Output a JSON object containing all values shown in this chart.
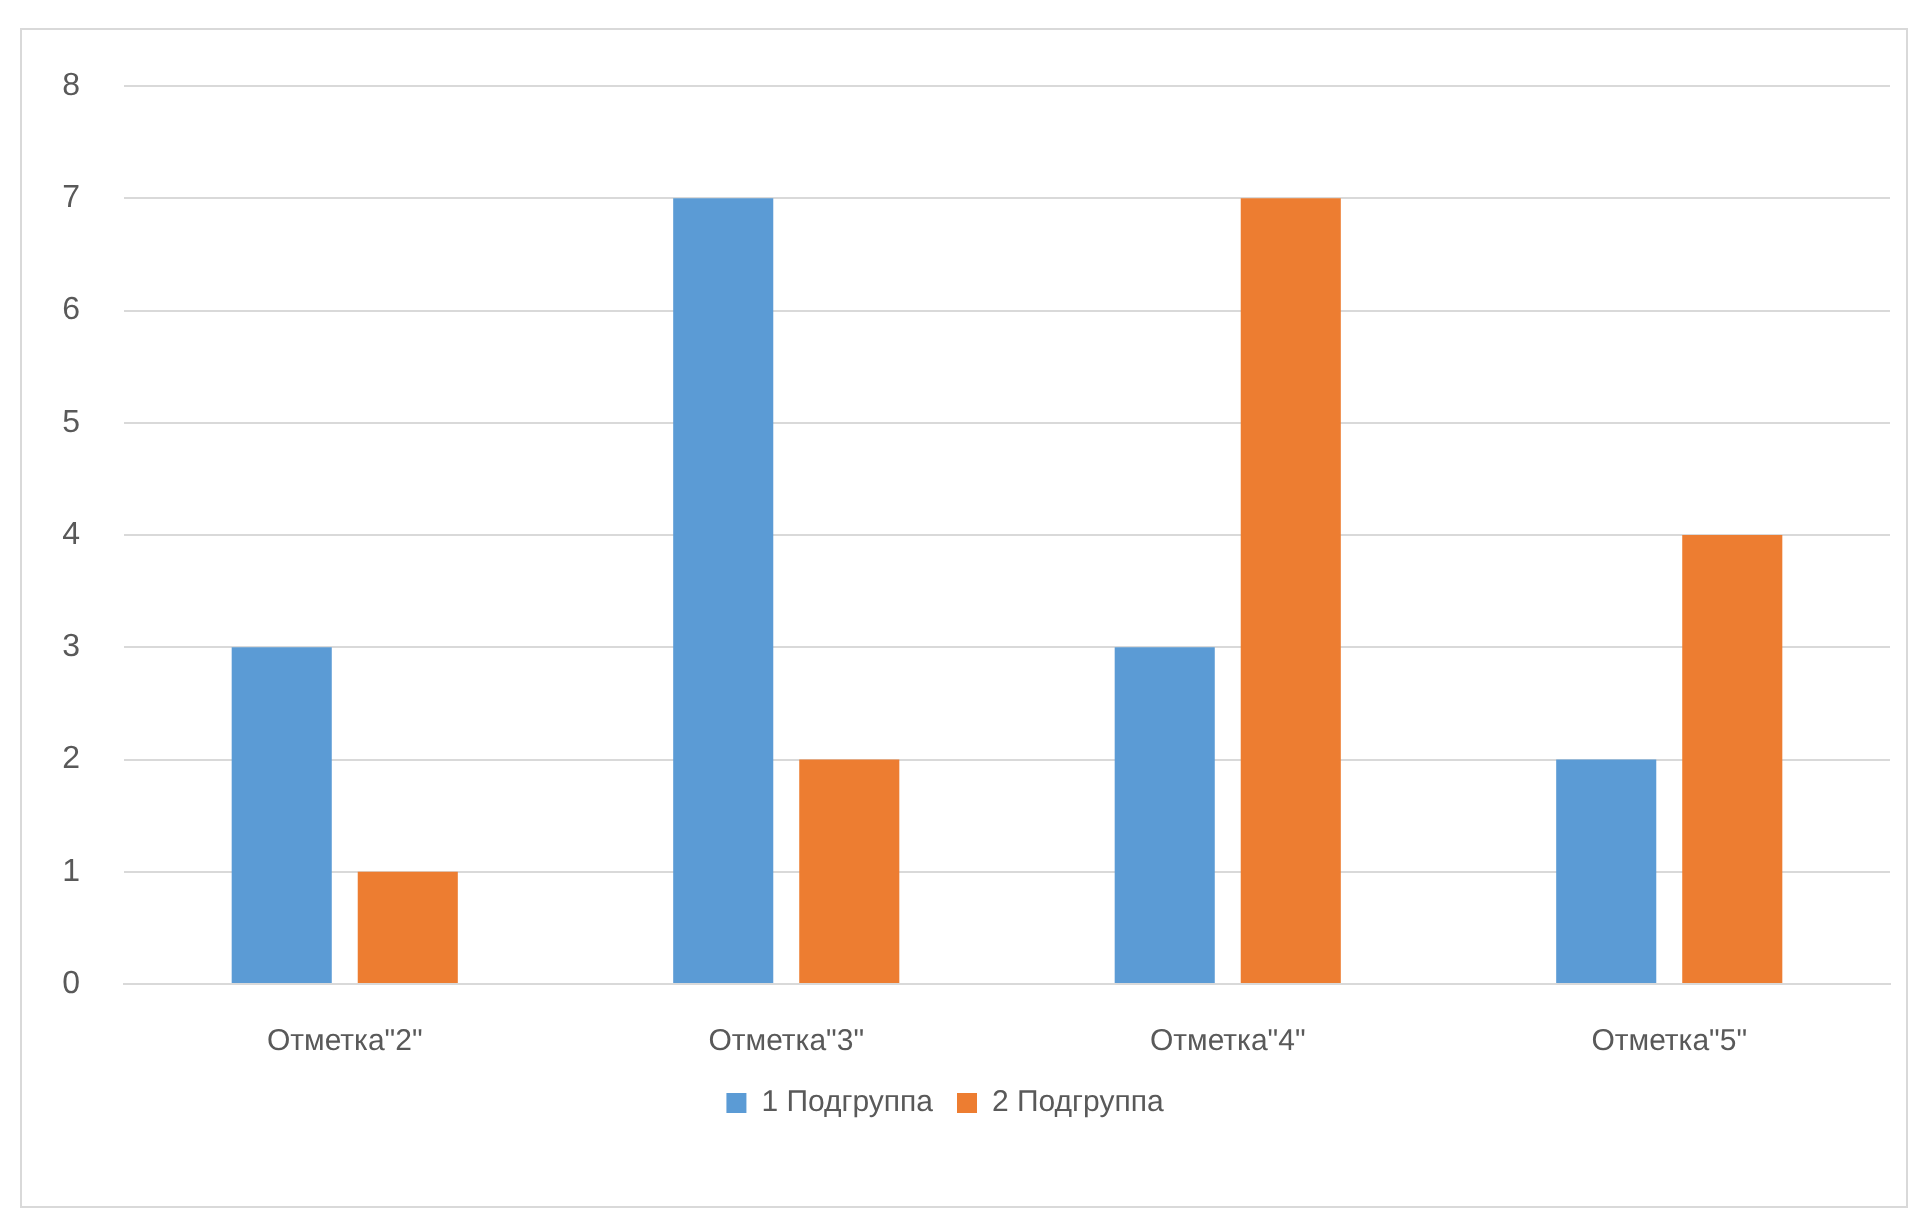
{
  "chart_data": {
    "type": "bar",
    "categories": [
      "Отметка\"2\"",
      "Отметка\"3\"",
      "Отметка\"4\"",
      "Отметка\"5\""
    ],
    "series": [
      {
        "name": "1 Подгруппа",
        "color": "#5b9bd5",
        "values": [
          3,
          7,
          3,
          2
        ]
      },
      {
        "name": "2 Подгруппа",
        "color": "#ed7d31",
        "values": [
          1,
          2,
          7,
          4
        ]
      }
    ],
    "ylim": [
      0,
      8
    ],
    "yticks": [
      0,
      1,
      2,
      3,
      4,
      5,
      6,
      7,
      8
    ],
    "grid": "y",
    "legend": "bottom"
  }
}
